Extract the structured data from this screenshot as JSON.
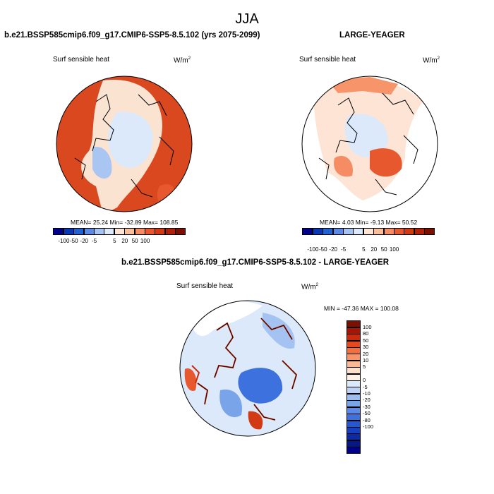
{
  "figure": {
    "title": "JJA"
  },
  "panels": {
    "model": {
      "title": "b.e21.BSSP585cmip6.f09_g17.CMIP6-SSP5-8.5.102 (yrs 2075-2099)",
      "variable": "Surf sensible heat",
      "units_base": "W/m",
      "units_exp": "2",
      "stats": "MEAN=  25.24  Min= -32.89  Max= 108.85"
    },
    "obs": {
      "title": "LARGE-YEAGER",
      "variable": "Surf sensible heat",
      "units_base": "W/m",
      "units_exp": "2",
      "stats": "MEAN=  4.03  Min=  -9.13  Max=  50.52"
    },
    "diff": {
      "title": "b.e21.BSSP585cmip6.f09_g17.CMIP6-SSP5-8.5.102 - LARGE-YEAGER",
      "variable": "Surf sensible heat",
      "units_base": "W/m",
      "units_exp": "2",
      "stats": "MIN = -47.36 MAX = 100.08"
    }
  },
  "colorbar_horizontal": {
    "colors": [
      "#00008b",
      "#0a37b4",
      "#2461d2",
      "#5a8ae6",
      "#a4c3f2",
      "#dbe9fb",
      "#fde4d4",
      "#fbbe9b",
      "#f58c64",
      "#e8582f",
      "#d23a14",
      "#b01f0a",
      "#7d0f00"
    ],
    "tick_labels": [
      "-100",
      "-50",
      "-20",
      "-5",
      "5",
      "20",
      "50",
      "100"
    ]
  },
  "colorbar_vertical": {
    "colors": [
      "#7d0f00",
      "#a81505",
      "#c92b0c",
      "#e34a1f",
      "#f0703f",
      "#f7946a",
      "#fbb993",
      "#fde0cc",
      "#fdf1e8",
      "#dce9fb",
      "#bcd3f5",
      "#9bbdf0",
      "#7aa4ea",
      "#5a8ae6",
      "#3d71de",
      "#2457d2",
      "#1640c0",
      "#0b2aa5",
      "#031985",
      "#00008b"
    ],
    "tick_labels": [
      "100",
      "80",
      "50",
      "30",
      "20",
      "10",
      "5",
      "0",
      "-5",
      "-10",
      "-20",
      "-30",
      "-50",
      "-80",
      "-100"
    ]
  }
}
